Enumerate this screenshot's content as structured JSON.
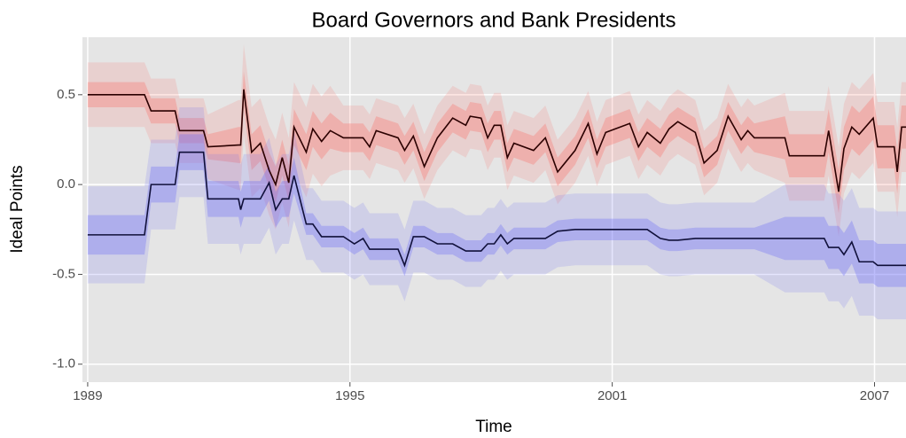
{
  "chart_data": {
    "type": "line",
    "title": "Board Governors and Bank Presidents",
    "x_label": "Time",
    "y_label": "Ideal Points",
    "xlim": [
      1988.88,
      2007.72
    ],
    "ylim": [
      -1.1,
      0.82
    ],
    "xticks": [
      1989,
      1995,
      2001,
      2007
    ],
    "yticks": [
      {
        "value": -1.0,
        "label": "-1.0"
      },
      {
        "value": -0.5,
        "label": "-0.5"
      },
      {
        "value": 0,
        "label": "0.0"
      },
      {
        "value": 0.5,
        "label": "0.5"
      }
    ],
    "grid": true,
    "x": [
      1989.0,
      1990.3,
      1990.45,
      1991.0,
      1991.1,
      1991.65,
      1991.75,
      1992.45,
      1992.5,
      1992.57,
      1992.75,
      1992.95,
      1993.15,
      1993.3,
      1993.45,
      1993.6,
      1993.72,
      1994.0,
      1994.15,
      1994.35,
      1994.55,
      1994.85,
      1995.1,
      1995.3,
      1995.45,
      1995.6,
      1996.1,
      1996.25,
      1996.45,
      1996.7,
      1997.0,
      1997.35,
      1997.65,
      1997.75,
      1998.0,
      1998.15,
      1998.3,
      1998.45,
      1998.6,
      1998.75,
      1999.2,
      1999.47,
      1999.75,
      2000.15,
      2000.45,
      2000.65,
      2000.85,
      2001.4,
      2001.6,
      2001.8,
      2002.1,
      2002.3,
      2002.5,
      2002.9,
      2003.1,
      2003.4,
      2003.65,
      2003.95,
      2004.1,
      2004.25,
      2004.95,
      2005.05,
      2005.85,
      2005.95,
      2006.18,
      2006.3,
      2006.48,
      2006.65,
      2006.97,
      2007.07,
      2007.45,
      2007.52,
      2007.62,
      2007.72
    ],
    "series": [
      {
        "color": "#2b0000",
        "band_color": "#f8766d",
        "values": [
          0.5,
          0.5,
          0.41,
          0.41,
          0.3,
          0.3,
          0.21,
          0.22,
          0.22,
          0.53,
          0.18,
          0.23,
          0.08,
          0.0,
          0.15,
          0.01,
          0.32,
          0.18,
          0.31,
          0.24,
          0.3,
          0.26,
          0.26,
          0.26,
          0.21,
          0.3,
          0.26,
          0.19,
          0.27,
          0.1,
          0.26,
          0.37,
          0.33,
          0.38,
          0.37,
          0.26,
          0.33,
          0.33,
          0.15,
          0.23,
          0.19,
          0.26,
          0.07,
          0.19,
          0.34,
          0.17,
          0.29,
          0.34,
          0.21,
          0.29,
          0.23,
          0.31,
          0.35,
          0.29,
          0.12,
          0.19,
          0.38,
          0.25,
          0.3,
          0.26,
          0.26,
          0.16,
          0.16,
          0.3,
          -0.04,
          0.2,
          0.32,
          0.28,
          0.37,
          0.21,
          0.21,
          0.07,
          0.32,
          0.32
        ],
        "lower": [
          0.43,
          0.43,
          0.34,
          0.34,
          0.23,
          0.23,
          0.14,
          0.12,
          0.12,
          0.43,
          0.08,
          0.13,
          -0.02,
          -0.1,
          0.05,
          -0.09,
          0.22,
          0.08,
          0.21,
          0.14,
          0.2,
          0.18,
          0.18,
          0.18,
          0.13,
          0.22,
          0.18,
          0.11,
          0.19,
          0.02,
          0.18,
          0.29,
          0.25,
          0.3,
          0.29,
          0.18,
          0.25,
          0.25,
          0.07,
          0.15,
          0.11,
          0.18,
          -0.01,
          0.11,
          0.26,
          0.09,
          0.21,
          0.26,
          0.13,
          0.21,
          0.15,
          0.23,
          0.27,
          0.21,
          0.04,
          0.11,
          0.3,
          0.17,
          0.22,
          0.18,
          0.14,
          0.04,
          0.04,
          0.18,
          -0.16,
          0.08,
          0.2,
          0.16,
          0.25,
          0.09,
          0.09,
          -0.05,
          0.2,
          0.2
        ],
        "upper": [
          0.57,
          0.57,
          0.48,
          0.48,
          0.37,
          0.37,
          0.28,
          0.32,
          0.32,
          0.63,
          0.28,
          0.33,
          0.18,
          0.1,
          0.25,
          0.11,
          0.42,
          0.28,
          0.41,
          0.34,
          0.4,
          0.34,
          0.34,
          0.34,
          0.29,
          0.38,
          0.34,
          0.27,
          0.35,
          0.18,
          0.34,
          0.45,
          0.41,
          0.46,
          0.45,
          0.34,
          0.41,
          0.41,
          0.23,
          0.31,
          0.27,
          0.34,
          0.15,
          0.27,
          0.42,
          0.25,
          0.37,
          0.42,
          0.29,
          0.37,
          0.31,
          0.39,
          0.43,
          0.37,
          0.2,
          0.27,
          0.46,
          0.33,
          0.38,
          0.34,
          0.38,
          0.28,
          0.28,
          0.42,
          0.08,
          0.32,
          0.44,
          0.4,
          0.49,
          0.33,
          0.33,
          0.19,
          0.44,
          0.44
        ],
        "lower_outer": [
          0.32,
          0.32,
          0.23,
          0.23,
          0.12,
          0.12,
          0.03,
          -0.03,
          -0.03,
          0.28,
          -0.07,
          -0.02,
          -0.17,
          -0.25,
          -0.1,
          -0.24,
          0.07,
          -0.07,
          0.06,
          -0.01,
          0.05,
          0.08,
          0.08,
          0.08,
          0.03,
          0.12,
          0.08,
          0.01,
          0.09,
          -0.08,
          0.08,
          0.19,
          0.15,
          0.2,
          0.19,
          0.08,
          0.15,
          0.15,
          -0.03,
          0.05,
          0.01,
          0.08,
          -0.11,
          0.01,
          0.16,
          -0.01,
          0.11,
          0.16,
          0.03,
          0.11,
          0.05,
          0.13,
          0.17,
          0.11,
          -0.06,
          0.01,
          0.2,
          0.07,
          0.12,
          0.08,
          0.01,
          -0.09,
          -0.09,
          0.05,
          -0.29,
          -0.05,
          0.07,
          0.03,
          0.12,
          -0.04,
          -0.04,
          -0.18,
          0.07,
          0.07
        ],
        "upper_outer": [
          0.68,
          0.68,
          0.59,
          0.59,
          0.48,
          0.48,
          0.39,
          0.47,
          0.47,
          0.78,
          0.43,
          0.48,
          0.33,
          0.25,
          0.4,
          0.26,
          0.57,
          0.43,
          0.56,
          0.49,
          0.55,
          0.44,
          0.44,
          0.44,
          0.39,
          0.48,
          0.44,
          0.37,
          0.45,
          0.28,
          0.44,
          0.55,
          0.51,
          0.56,
          0.55,
          0.44,
          0.51,
          0.51,
          0.33,
          0.41,
          0.37,
          0.44,
          0.25,
          0.37,
          0.52,
          0.35,
          0.47,
          0.52,
          0.39,
          0.47,
          0.41,
          0.49,
          0.53,
          0.47,
          0.3,
          0.37,
          0.56,
          0.43,
          0.48,
          0.44,
          0.51,
          0.41,
          0.41,
          0.55,
          0.21,
          0.45,
          0.57,
          0.53,
          0.62,
          0.46,
          0.46,
          0.32,
          0.57,
          0.57
        ]
      },
      {
        "color": "#10103a",
        "band_color": "#6f6ff5",
        "values": [
          -0.28,
          -0.28,
          0,
          0,
          0.18,
          0.18,
          -0.08,
          -0.08,
          -0.14,
          -0.08,
          -0.08,
          -0.08,
          0.01,
          -0.14,
          -0.08,
          -0.08,
          0.05,
          -0.22,
          -0.22,
          -0.29,
          -0.29,
          -0.29,
          -0.33,
          -0.3,
          -0.36,
          -0.36,
          -0.36,
          -0.45,
          -0.29,
          -0.29,
          -0.33,
          -0.33,
          -0.37,
          -0.37,
          -0.37,
          -0.33,
          -0.33,
          -0.28,
          -0.33,
          -0.3,
          -0.3,
          -0.3,
          -0.26,
          -0.25,
          -0.25,
          -0.25,
          -0.25,
          -0.25,
          -0.25,
          -0.25,
          -0.3,
          -0.31,
          -0.31,
          -0.3,
          -0.3,
          -0.3,
          -0.3,
          -0.3,
          -0.3,
          -0.3,
          -0.3,
          -0.3,
          -0.3,
          -0.35,
          -0.35,
          -0.39,
          -0.32,
          -0.43,
          -0.43,
          -0.45,
          -0.45,
          -0.45,
          -0.45,
          -0.45
        ],
        "lower": [
          -0.39,
          -0.39,
          -0.1,
          -0.1,
          0.08,
          0.08,
          -0.18,
          -0.18,
          -0.24,
          -0.18,
          -0.18,
          -0.18,
          -0.09,
          -0.24,
          -0.18,
          -0.18,
          -0.05,
          -0.28,
          -0.28,
          -0.35,
          -0.35,
          -0.35,
          -0.39,
          -0.36,
          -0.42,
          -0.42,
          -0.42,
          -0.51,
          -0.35,
          -0.35,
          -0.39,
          -0.39,
          -0.43,
          -0.43,
          -0.43,
          -0.39,
          -0.39,
          -0.34,
          -0.39,
          -0.36,
          -0.36,
          -0.36,
          -0.32,
          -0.31,
          -0.31,
          -0.31,
          -0.31,
          -0.31,
          -0.31,
          -0.31,
          -0.36,
          -0.37,
          -0.37,
          -0.36,
          -0.36,
          -0.36,
          -0.36,
          -0.36,
          -0.36,
          -0.36,
          -0.42,
          -0.42,
          -0.42,
          -0.47,
          -0.47,
          -0.51,
          -0.44,
          -0.55,
          -0.55,
          -0.57,
          -0.57,
          -0.57,
          -0.57,
          -0.57
        ],
        "upper": [
          -0.17,
          -0.17,
          0.1,
          0.1,
          0.28,
          0.28,
          0.02,
          0.02,
          -0.04,
          0.02,
          0.02,
          0.02,
          0.11,
          -0.04,
          0.02,
          0.02,
          0.15,
          -0.16,
          -0.16,
          -0.23,
          -0.23,
          -0.23,
          -0.27,
          -0.24,
          -0.3,
          -0.3,
          -0.3,
          -0.39,
          -0.23,
          -0.23,
          -0.27,
          -0.27,
          -0.31,
          -0.31,
          -0.31,
          -0.27,
          -0.27,
          -0.22,
          -0.27,
          -0.24,
          -0.24,
          -0.24,
          -0.2,
          -0.19,
          -0.19,
          -0.19,
          -0.19,
          -0.19,
          -0.19,
          -0.19,
          -0.24,
          -0.25,
          -0.25,
          -0.24,
          -0.24,
          -0.24,
          -0.24,
          -0.24,
          -0.24,
          -0.24,
          -0.18,
          -0.18,
          -0.18,
          -0.23,
          -0.23,
          -0.27,
          -0.2,
          -0.31,
          -0.31,
          -0.33,
          -0.33,
          -0.33,
          -0.33,
          -0.33
        ],
        "lower_outer": [
          -0.55,
          -0.55,
          -0.25,
          -0.25,
          -0.07,
          -0.07,
          -0.33,
          -0.33,
          -0.39,
          -0.33,
          -0.33,
          -0.33,
          -0.24,
          -0.39,
          -0.33,
          -0.33,
          -0.2,
          -0.42,
          -0.42,
          -0.49,
          -0.49,
          -0.49,
          -0.53,
          -0.5,
          -0.56,
          -0.56,
          -0.56,
          -0.65,
          -0.49,
          -0.49,
          -0.53,
          -0.53,
          -0.57,
          -0.57,
          -0.57,
          -0.53,
          -0.53,
          -0.48,
          -0.53,
          -0.5,
          -0.5,
          -0.5,
          -0.46,
          -0.45,
          -0.45,
          -0.45,
          -0.45,
          -0.45,
          -0.45,
          -0.45,
          -0.5,
          -0.51,
          -0.51,
          -0.5,
          -0.5,
          -0.5,
          -0.5,
          -0.5,
          -0.5,
          -0.5,
          -0.6,
          -0.6,
          -0.6,
          -0.65,
          -0.65,
          -0.69,
          -0.62,
          -0.73,
          -0.73,
          -0.75,
          -0.75,
          -0.75,
          -0.75,
          -0.75
        ],
        "upper_outer": [
          -0.01,
          -0.01,
          0.25,
          0.25,
          0.43,
          0.43,
          0.17,
          0.17,
          0.11,
          0.17,
          0.17,
          0.17,
          0.26,
          0.11,
          0.17,
          0.17,
          0.3,
          -0.02,
          -0.02,
          -0.09,
          -0.09,
          -0.09,
          -0.13,
          -0.1,
          -0.16,
          -0.16,
          -0.16,
          -0.25,
          -0.09,
          -0.09,
          -0.13,
          -0.13,
          -0.17,
          -0.17,
          -0.17,
          -0.13,
          -0.13,
          -0.08,
          -0.13,
          -0.1,
          -0.1,
          -0.1,
          -0.06,
          -0.05,
          -0.05,
          -0.05,
          -0.05,
          -0.05,
          -0.05,
          -0.05,
          -0.1,
          -0.11,
          -0.11,
          -0.1,
          -0.1,
          -0.1,
          -0.1,
          -0.1,
          -0.1,
          -0.1,
          0.0,
          0.0,
          0.0,
          -0.05,
          -0.05,
          -0.09,
          -0.02,
          -0.13,
          -0.13,
          -0.15,
          -0.15,
          -0.15,
          -0.15,
          -0.15
        ]
      }
    ]
  }
}
